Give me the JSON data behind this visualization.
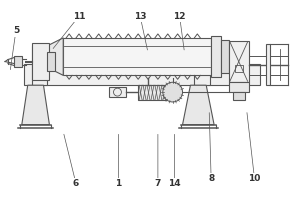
{
  "bg_color": "#ffffff",
  "line_color": "#555555",
  "label_color": "#333333",
  "figsize": [
    3.0,
    2.0
  ],
  "dpi": 100,
  "labels_info": [
    [
      "5",
      14,
      170,
      8,
      128
    ],
    [
      "6",
      75,
      15,
      62,
      68
    ],
    [
      "1",
      118,
      15,
      118,
      68
    ],
    [
      "7",
      158,
      15,
      158,
      68
    ],
    [
      "14",
      175,
      15,
      175,
      68
    ],
    [
      "8",
      212,
      20,
      210,
      90
    ],
    [
      "10",
      256,
      20,
      248,
      90
    ],
    [
      "11",
      78,
      185,
      50,
      150
    ],
    [
      "13",
      140,
      185,
      148,
      148
    ],
    [
      "12",
      180,
      185,
      185,
      148
    ]
  ]
}
